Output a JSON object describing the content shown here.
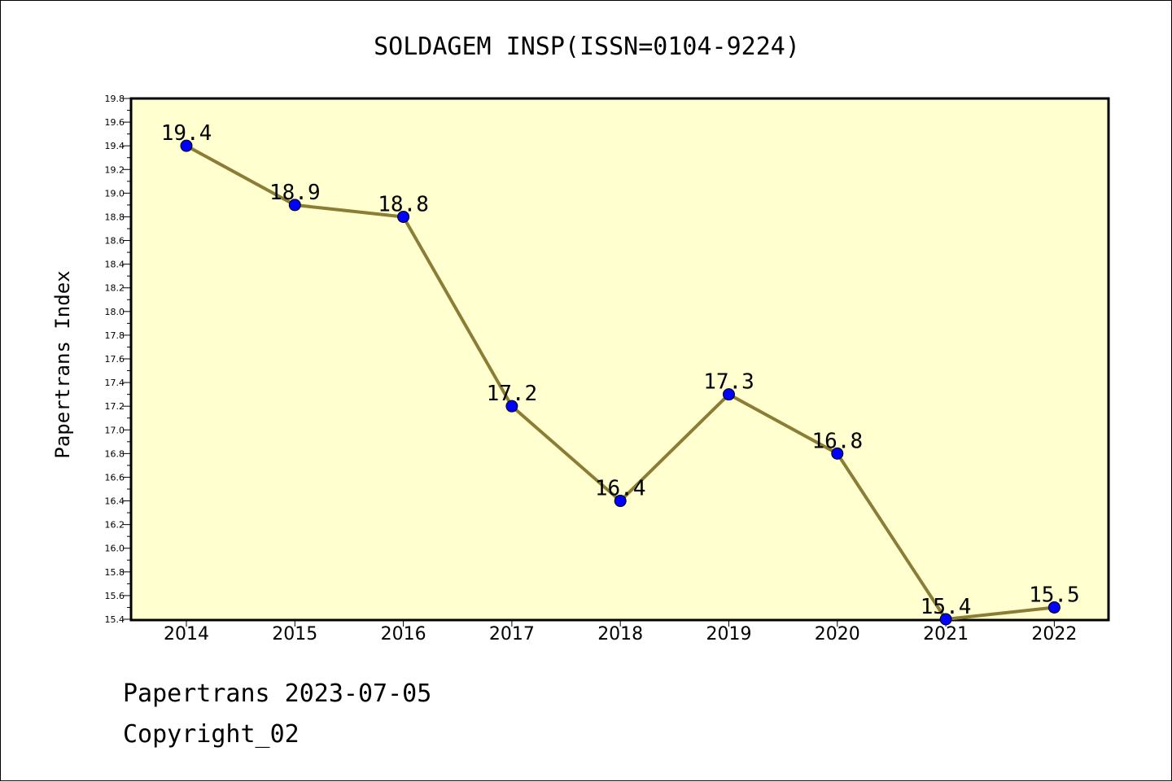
{
  "chart_data": {
    "type": "line",
    "title": "SOLDAGEM INSP(ISSN=0104-9224)",
    "xlabel": "",
    "ylabel": "Papertrans Index",
    "categories": [
      "2014",
      "2015",
      "2016",
      "2017",
      "2018",
      "2019",
      "2020",
      "2021",
      "2022"
    ],
    "series": [
      {
        "values": [
          19.4,
          18.9,
          18.8,
          17.2,
          16.4,
          17.3,
          16.8,
          15.4,
          15.5
        ],
        "labels": [
          "19.4",
          "18.9",
          "18.8",
          "17.2",
          "16.4",
          "17.3",
          "16.8",
          "15.4",
          "15.5"
        ]
      }
    ],
    "ylim": [
      15.4,
      19.8
    ],
    "yticks": [
      "15.4",
      "15.6",
      "15.8",
      "16.0",
      "16.2",
      "16.4",
      "16.6",
      "16.8",
      "17.0",
      "17.2",
      "17.4",
      "17.6",
      "17.8",
      "18.0",
      "18.2",
      "18.4",
      "18.6",
      "18.8",
      "19.0",
      "19.2",
      "19.4",
      "19.6",
      "19.8"
    ],
    "grid": false,
    "colors": {
      "plot_background": "#ffffd0",
      "line": "#8b7d35",
      "marker": "#0000ff"
    }
  },
  "footer": {
    "date_line": "Papertrans 2023-07-05",
    "copyright_line": "Copyright_02"
  }
}
